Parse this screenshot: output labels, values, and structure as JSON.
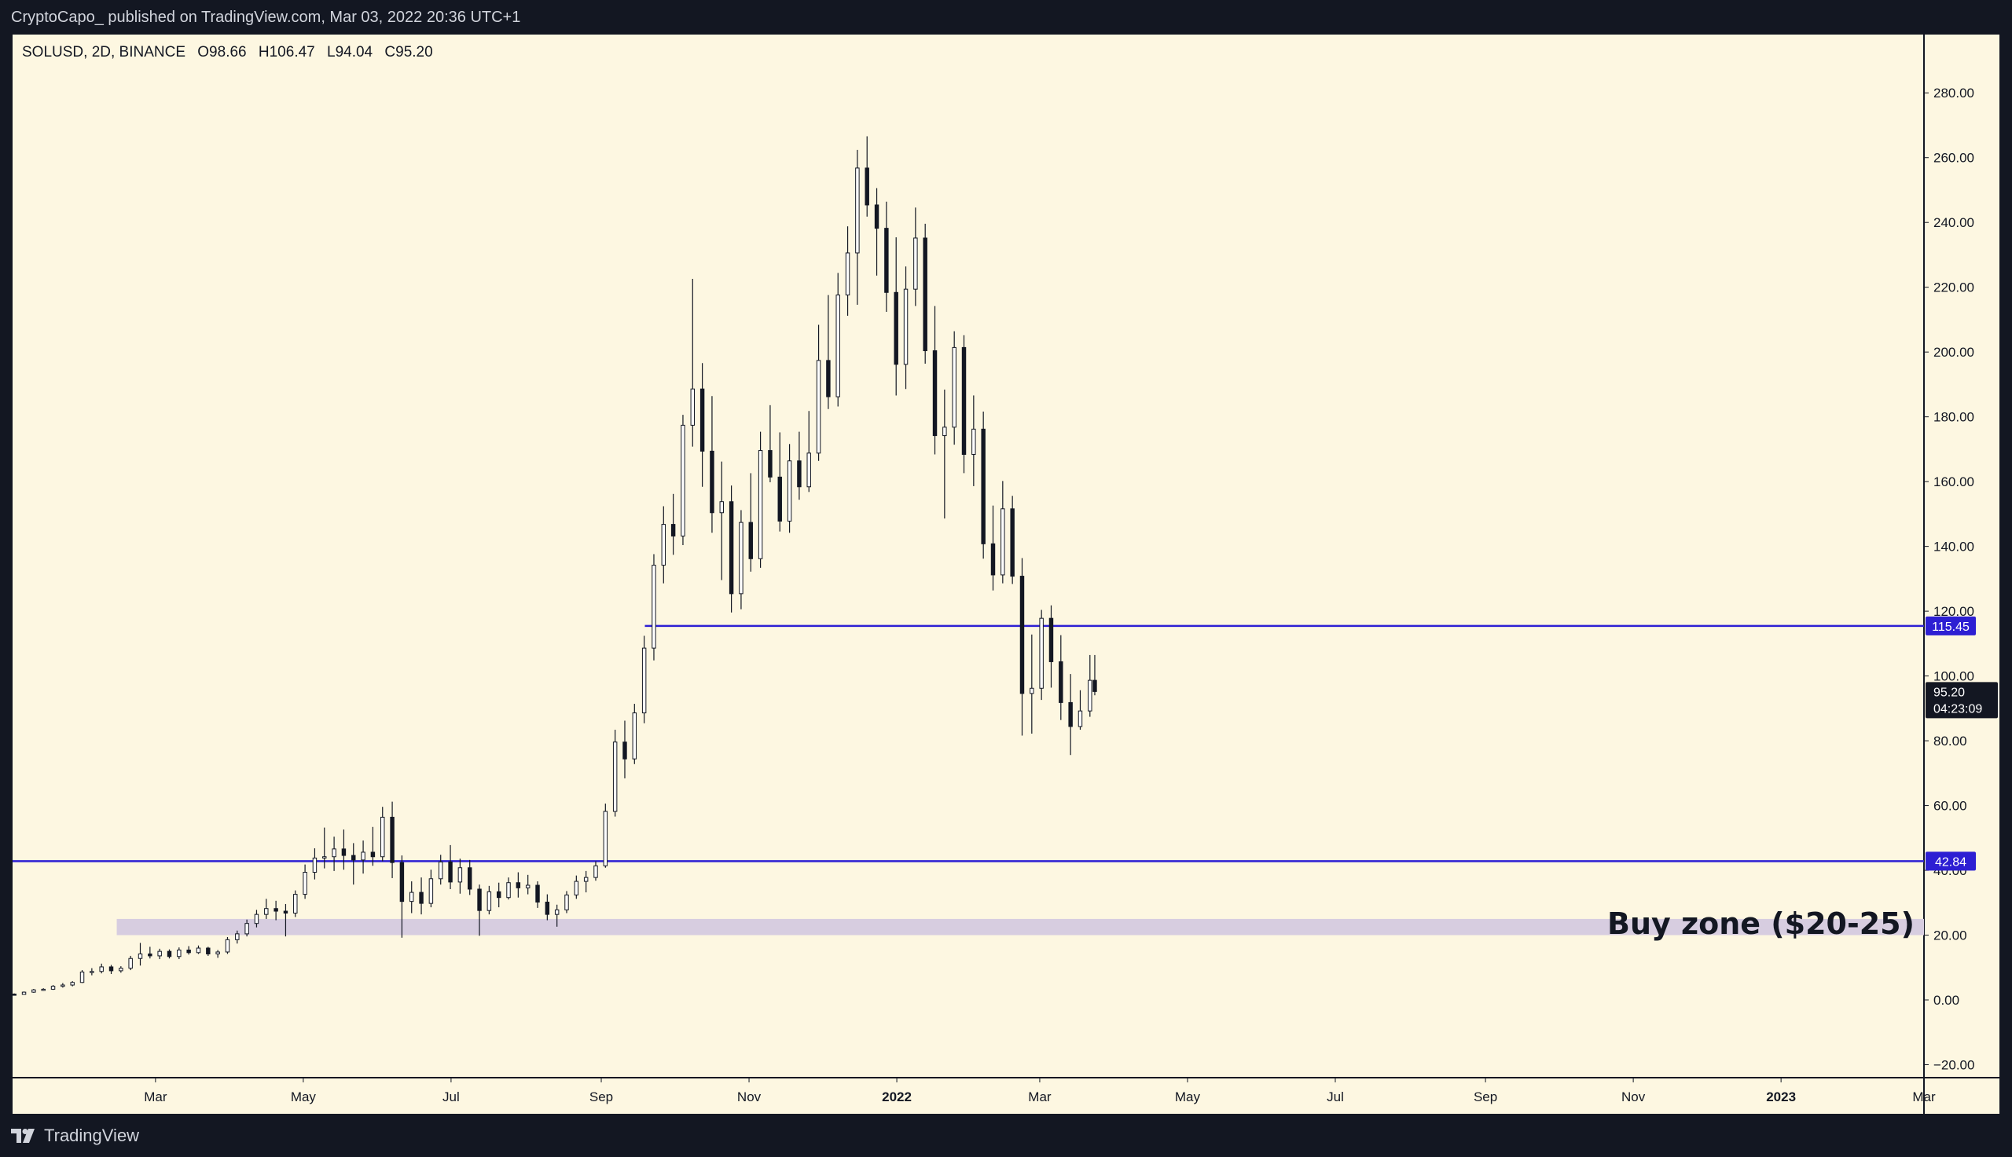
{
  "header": {
    "published_text": "CryptoCapo_  published on TradingView.com, Mar 03, 2022 20:36 UTC+1"
  },
  "footer": {
    "brand": "TradingView",
    "logo_icon": "tradingview-logo-icon"
  },
  "colors": {
    "background": "#fdf7e1",
    "frame": "#131722",
    "candle_up": "#ffffff",
    "candle_down": "#131722",
    "level_line": "#2d1fd3",
    "buy_zone": "#d7cde0"
  },
  "chart_data": {
    "type": "candlestick",
    "symbol_line": {
      "symbol": "SOLUSD, 2D, BINANCE",
      "open": "O98.66",
      "high": "H106.47",
      "low": "L94.04",
      "close": "C95.20"
    },
    "y_ticks": [
      "280.00",
      "260.00",
      "240.00",
      "220.00",
      "200.00",
      "180.00",
      "160.00",
      "140.00",
      "120.00",
      "100.00",
      "80.00",
      "60.00",
      "40.00",
      "20.00",
      "0.00",
      "−20.00"
    ],
    "y_tick_values": [
      280,
      260,
      240,
      220,
      200,
      180,
      160,
      140,
      120,
      100,
      80,
      60,
      40,
      20,
      0,
      -20
    ],
    "ylim": [
      -24,
      298
    ],
    "x_ticks": [
      {
        "label": "Mar",
        "date": "2021-03-01",
        "bold": false
      },
      {
        "label": "May",
        "date": "2021-05-01",
        "bold": false
      },
      {
        "label": "Jul",
        "date": "2021-07-01",
        "bold": false
      },
      {
        "label": "Sep",
        "date": "2021-09-01",
        "bold": false
      },
      {
        "label": "Nov",
        "date": "2021-11-01",
        "bold": false
      },
      {
        "label": "2022",
        "date": "2022-01-01",
        "bold": true
      },
      {
        "label": "Mar",
        "date": "2022-03-01",
        "bold": false
      },
      {
        "label": "May",
        "date": "2022-05-01",
        "bold": false
      },
      {
        "label": "Jul",
        "date": "2022-07-01",
        "bold": false
      },
      {
        "label": "Sep",
        "date": "2022-09-01",
        "bold": false
      },
      {
        "label": "Nov",
        "date": "2022-11-01",
        "bold": false
      },
      {
        "label": "2023",
        "date": "2023-01-01",
        "bold": true
      },
      {
        "label": "Mar",
        "date": "2023-03-01",
        "bold": false
      }
    ],
    "xlim": [
      "2021-01-01",
      "2023-03-01"
    ],
    "levels": [
      {
        "price": 115.45,
        "label": "115.45",
        "start_date": "2021-09-19"
      },
      {
        "price": 42.84,
        "label": "42.84",
        "start_date": "2021-01-01"
      }
    ],
    "buy_zone": {
      "low": 20,
      "high": 25,
      "start_date": "2021-02-13",
      "label": "Buy zone ($20-25)"
    },
    "last_price": {
      "price": 95.2,
      "label": "95.20",
      "countdown": "04:23:09"
    },
    "candles": [
      [
        "2021-01-01",
        1.8,
        2.0,
        1.6,
        1.7
      ],
      [
        "2021-01-05",
        1.7,
        2.6,
        1.6,
        2.4
      ],
      [
        "2021-01-09",
        2.4,
        3.4,
        2.2,
        3.1
      ],
      [
        "2021-01-13",
        3.1,
        3.6,
        2.8,
        3.3
      ],
      [
        "2021-01-17",
        3.3,
        4.6,
        3.1,
        4.2
      ],
      [
        "2021-01-21",
        4.2,
        5.2,
        3.8,
        4.6
      ],
      [
        "2021-01-25",
        4.6,
        5.8,
        4.2,
        5.4
      ],
      [
        "2021-01-29",
        5.4,
        9.2,
        5.2,
        8.6
      ],
      [
        "2021-02-02",
        8.6,
        9.8,
        7.6,
        8.8
      ],
      [
        "2021-02-06",
        8.8,
        11.2,
        8.2,
        10.2
      ],
      [
        "2021-02-10",
        10.2,
        10.8,
        8.0,
        9.0
      ],
      [
        "2021-02-14",
        9.0,
        10.4,
        8.4,
        9.8
      ],
      [
        "2021-02-18",
        9.8,
        13.6,
        9.2,
        12.8
      ],
      [
        "2021-02-22",
        12.8,
        17.6,
        10.6,
        14.2
      ],
      [
        "2021-02-26",
        14.2,
        16.4,
        12.8,
        13.6
      ],
      [
        "2021-03-02",
        13.6,
        15.8,
        12.6,
        15.0
      ],
      [
        "2021-03-06",
        15.0,
        15.6,
        12.8,
        13.4
      ],
      [
        "2021-03-10",
        13.4,
        16.2,
        12.6,
        15.4
      ],
      [
        "2021-03-14",
        15.4,
        16.6,
        14.0,
        14.6
      ],
      [
        "2021-03-18",
        14.6,
        16.8,
        14.2,
        16.0
      ],
      [
        "2021-03-22",
        16.0,
        16.4,
        13.6,
        14.2
      ],
      [
        "2021-03-26",
        14.2,
        15.4,
        13.0,
        14.8
      ],
      [
        "2021-03-30",
        14.8,
        19.4,
        14.2,
        18.6
      ],
      [
        "2021-04-03",
        18.6,
        21.4,
        17.4,
        20.4
      ],
      [
        "2021-04-07",
        20.4,
        24.8,
        19.6,
        23.6
      ],
      [
        "2021-04-11",
        23.6,
        27.8,
        22.4,
        26.4
      ],
      [
        "2021-04-15",
        26.4,
        31.2,
        25.0,
        28.2
      ],
      [
        "2021-04-19",
        28.2,
        30.6,
        24.6,
        27.4
      ],
      [
        "2021-04-23",
        27.4,
        29.6,
        19.6,
        26.8
      ],
      [
        "2021-04-27",
        26.8,
        33.8,
        25.6,
        32.6
      ],
      [
        "2021-05-01",
        32.6,
        41.8,
        31.2,
        39.4
      ],
      [
        "2021-05-05",
        39.4,
        46.8,
        37.2,
        43.8
      ],
      [
        "2021-05-09",
        43.8,
        53.2,
        40.6,
        44.2
      ],
      [
        "2021-05-13",
        44.2,
        50.4,
        39.8,
        46.6
      ],
      [
        "2021-05-17",
        46.6,
        52.6,
        40.2,
        44.6
      ],
      [
        "2021-05-21",
        44.6,
        48.4,
        35.6,
        43.2
      ],
      [
        "2021-05-25",
        43.2,
        49.2,
        39.0,
        45.6
      ],
      [
        "2021-05-29",
        45.6,
        53.4,
        41.4,
        44.2
      ],
      [
        "2021-06-02",
        44.2,
        59.6,
        42.8,
        56.4
      ],
      [
        "2021-06-06",
        56.4,
        61.2,
        37.6,
        42.4
      ],
      [
        "2021-06-10",
        42.4,
        44.6,
        19.2,
        30.4
      ],
      [
        "2021-06-14",
        30.4,
        36.6,
        26.8,
        33.2
      ],
      [
        "2021-06-18",
        33.2,
        37.8,
        26.4,
        29.8
      ],
      [
        "2021-06-22",
        29.8,
        40.2,
        28.6,
        37.4
      ],
      [
        "2021-06-26",
        37.4,
        44.8,
        35.6,
        42.6
      ],
      [
        "2021-06-30",
        42.6,
        47.8,
        34.2,
        36.4
      ],
      [
        "2021-07-04",
        36.4,
        43.6,
        32.8,
        40.8
      ],
      [
        "2021-07-08",
        40.8,
        43.2,
        32.4,
        34.2
      ],
      [
        "2021-07-12",
        34.2,
        35.6,
        19.8,
        27.6
      ],
      [
        "2021-07-16",
        27.6,
        35.2,
        26.4,
        33.4
      ],
      [
        "2021-07-20",
        33.4,
        36.2,
        28.6,
        31.6
      ],
      [
        "2021-07-24",
        31.6,
        37.8,
        31.0,
        36.2
      ],
      [
        "2021-07-28",
        36.2,
        39.4,
        31.6,
        34.6
      ],
      [
        "2021-08-01",
        34.6,
        38.6,
        32.6,
        35.4
      ],
      [
        "2021-08-05",
        35.4,
        36.6,
        28.4,
        30.2
      ],
      [
        "2021-08-09",
        30.2,
        32.6,
        24.6,
        26.4
      ],
      [
        "2021-08-13",
        26.4,
        29.4,
        22.6,
        27.8
      ],
      [
        "2021-08-17",
        27.8,
        33.6,
        26.8,
        32.4
      ],
      [
        "2021-08-21",
        32.4,
        38.4,
        31.2,
        36.6
      ],
      [
        "2021-08-25",
        36.6,
        39.8,
        33.2,
        37.8
      ],
      [
        "2021-08-29",
        37.8,
        42.8,
        36.8,
        41.4
      ],
      [
        "2021-09-02",
        41.4,
        60.6,
        40.8,
        58.2
      ],
      [
        "2021-09-06",
        58.2,
        83.4,
        56.6,
        79.6
      ],
      [
        "2021-09-10",
        79.6,
        86.2,
        68.4,
        74.4
      ],
      [
        "2021-09-14",
        74.4,
        91.4,
        72.8,
        88.6
      ],
      [
        "2021-09-18",
        88.6,
        112.4,
        85.4,
        108.6
      ],
      [
        "2021-09-22",
        108.6,
        137.6,
        104.8,
        134.2
      ],
      [
        "2021-09-26",
        134.2,
        152.4,
        128.6,
        146.8
      ],
      [
        "2021-09-30",
        146.8,
        156.2,
        137.4,
        143.2
      ],
      [
        "2021-10-04",
        143.2,
        180.6,
        140.4,
        177.4
      ],
      [
        "2021-10-08",
        177.4,
        222.6,
        170.8,
        188.6
      ],
      [
        "2021-10-12",
        188.6,
        196.6,
        158.4,
        169.4
      ],
      [
        "2021-10-16",
        169.4,
        186.4,
        144.2,
        150.4
      ],
      [
        "2021-10-20",
        150.4,
        166.2,
        129.6,
        153.8
      ],
      [
        "2021-10-24",
        153.8,
        158.8,
        119.6,
        125.4
      ],
      [
        "2021-10-28",
        125.4,
        151.2,
        120.6,
        147.4
      ],
      [
        "2021-11-01",
        147.4,
        162.6,
        132.2,
        136.2
      ],
      [
        "2021-11-05",
        136.2,
        175.4,
        133.4,
        169.6
      ],
      [
        "2021-11-09",
        169.6,
        183.6,
        159.8,
        161.4
      ],
      [
        "2021-11-13",
        161.4,
        175.2,
        144.6,
        147.8
      ],
      [
        "2021-11-17",
        147.8,
        171.6,
        144.2,
        166.4
      ],
      [
        "2021-11-21",
        166.4,
        175.4,
        154.4,
        158.4
      ],
      [
        "2021-11-25",
        158.4,
        181.8,
        156.8,
        168.8
      ],
      [
        "2021-11-29",
        168.8,
        208.4,
        166.4,
        197.4
      ],
      [
        "2021-12-03",
        197.4,
        217.6,
        182.4,
        186.2
      ],
      [
        "2021-12-07",
        186.2,
        224.4,
        183.2,
        217.6
      ],
      [
        "2021-12-11",
        217.6,
        238.8,
        211.2,
        230.6
      ],
      [
        "2021-12-15",
        230.6,
        262.4,
        214.6,
        256.8
      ],
      [
        "2021-12-19",
        256.8,
        266.6,
        241.8,
        245.4
      ],
      [
        "2021-12-23",
        245.4,
        250.6,
        223.6,
        238.2
      ],
      [
        "2021-12-27",
        238.2,
        246.4,
        212.4,
        218.4
      ],
      [
        "2021-12-31",
        218.4,
        235.4,
        186.6,
        196.2
      ],
      [
        "2022-01-04",
        196.2,
        226.4,
        188.6,
        219.4
      ],
      [
        "2022-01-08",
        219.4,
        244.6,
        214.2,
        235.2
      ],
      [
        "2022-01-12",
        235.2,
        239.6,
        196.4,
        200.4
      ],
      [
        "2022-01-16",
        200.4,
        214.2,
        168.4,
        174.2
      ],
      [
        "2022-01-20",
        174.2,
        188.4,
        148.6,
        176.8
      ],
      [
        "2022-01-24",
        176.8,
        206.4,
        171.4,
        201.4
      ],
      [
        "2022-01-28",
        201.4,
        205.2,
        162.6,
        168.4
      ],
      [
        "2022-02-01",
        168.4,
        186.6,
        158.6,
        176.2
      ],
      [
        "2022-02-05",
        176.2,
        181.6,
        136.2,
        140.8
      ],
      [
        "2022-02-09",
        140.8,
        152.6,
        126.4,
        131.2
      ],
      [
        "2022-02-13",
        131.2,
        160.2,
        128.6,
        151.6
      ],
      [
        "2022-02-17",
        151.6,
        155.6,
        128.4,
        130.8
      ],
      [
        "2022-02-21",
        130.8,
        136.4,
        81.6,
        94.6
      ],
      [
        "2022-02-25",
        94.6,
        112.8,
        82.2,
        96.2
      ],
      [
        "2022-03-01",
        96.2,
        120.4,
        92.6,
        117.8
      ],
      [
        "2022-03-05",
        117.8,
        121.8,
        96.4,
        104.4
      ],
      [
        "2022-03-09",
        104.4,
        112.6,
        86.4,
        91.8
      ],
      [
        "2022-03-13",
        91.8,
        100.6,
        75.6,
        84.4
      ],
      [
        "2022-03-17",
        84.4,
        95.6,
        83.4,
        89.2
      ],
      [
        "2022-03-21",
        89.2,
        106.47,
        87.4,
        98.66
      ],
      [
        "2022-03-23",
        98.66,
        106.47,
        94.04,
        95.2
      ]
    ]
  }
}
